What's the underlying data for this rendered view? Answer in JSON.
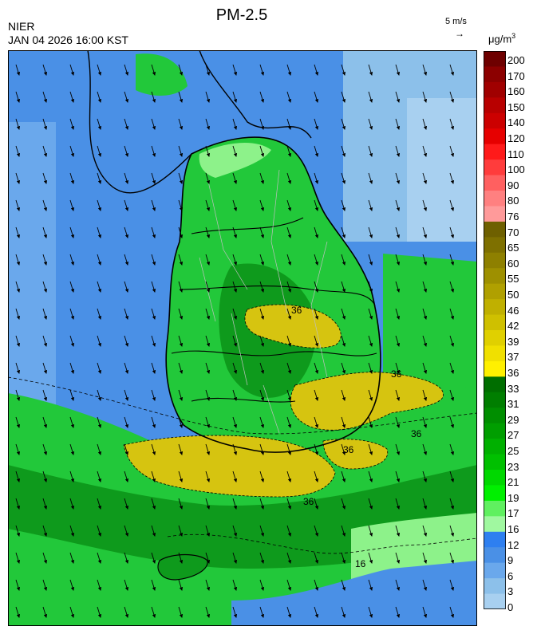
{
  "header": {
    "agency": "NIER",
    "datetime": "JAN 04 2026 16:00 KST",
    "title": "PM-2.5",
    "wind_reference": "5 m/s",
    "unit": "μg/m",
    "unit_exponent": "3"
  },
  "contour_label": "36",
  "contour_label_low": "16",
  "colors": {
    "water_low": "#4a90e6",
    "water_light": "#8cc0ea",
    "green_mid": "#22c83a",
    "green_dark": "#0e9a1c",
    "green_light": "#8df28a",
    "yellow": "#d6c410"
  },
  "legend": {
    "ticks": [
      "200",
      "170",
      "160",
      "150",
      "140",
      "120",
      "110",
      "100",
      "90",
      "80",
      "76",
      "70",
      "65",
      "60",
      "55",
      "50",
      "46",
      "42",
      "39",
      "37",
      "36",
      "33",
      "31",
      "29",
      "27",
      "25",
      "23",
      "21",
      "19",
      "17",
      "16",
      "12",
      "9",
      "6",
      "3",
      "0"
    ],
    "colors": [
      "#6e0000",
      "#8c0000",
      "#a00000",
      "#b80000",
      "#cc0000",
      "#e60000",
      "#ff1a1a",
      "#ff3c3c",
      "#ff6060",
      "#ff8080",
      "#ff9a9a",
      "#6e6000",
      "#7e7000",
      "#8e8000",
      "#9e9000",
      "#b0a000",
      "#c0b000",
      "#cfc000",
      "#e0d000",
      "#f0e000",
      "#fff000",
      "#006e00",
      "#007e00",
      "#008e00",
      "#009e00",
      "#00b000",
      "#00c000",
      "#00d800",
      "#00f000",
      "#60f060",
      "#a0f8a0",
      "#2e7ff0",
      "#4a90e6",
      "#6aa8ec",
      "#8cc0ea",
      "#a8d0f0"
    ]
  }
}
